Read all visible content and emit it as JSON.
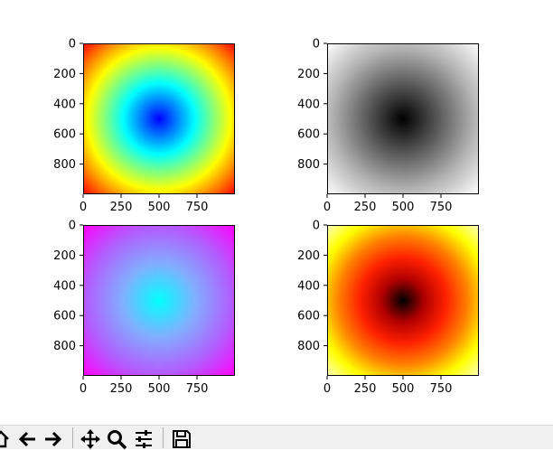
{
  "toolbar": {
    "buttons": [
      {
        "name": "home-button",
        "icon": "home-icon"
      },
      {
        "name": "back-button",
        "icon": "arrow-left-icon"
      },
      {
        "name": "forward-button",
        "icon": "arrow-right-icon"
      },
      {
        "name": "pan-button",
        "icon": "move-arrows-icon"
      },
      {
        "name": "zoom-button",
        "icon": "magnifier-icon"
      },
      {
        "name": "configure-subplots-button",
        "icon": "sliders-icon"
      },
      {
        "name": "save-button",
        "icon": "floppy-disk-icon"
      }
    ]
  },
  "chart_data": [
    {
      "type": "heatmap",
      "colormap": "jet-like (blue center, red corners)",
      "x_ticks": [
        "0",
        "250",
        "500",
        "750"
      ],
      "y_ticks": [
        "0",
        "200",
        "400",
        "600",
        "800"
      ],
      "xlim": [
        0,
        1000
      ],
      "ylim": [
        1000,
        0
      ],
      "stops": [
        "#0000ff",
        "#0080ff",
        "#00ffff",
        "#80ff80",
        "#ffff00",
        "#ff8000",
        "#ff0000"
      ]
    },
    {
      "type": "heatmap",
      "colormap": "gray (black center, light corners)",
      "x_ticks": [
        "0",
        "250",
        "500",
        "750"
      ],
      "y_ticks": [
        "0",
        "200",
        "400",
        "600",
        "800"
      ],
      "xlim": [
        0,
        1000
      ],
      "ylim": [
        1000,
        0
      ],
      "stops": [
        "#000000",
        "#5a5a5a",
        "#b4b4b4",
        "#ffffff"
      ]
    },
    {
      "type": "heatmap",
      "colormap": "cool (cyan center, magenta corners)",
      "x_ticks": [
        "0",
        "250",
        "500",
        "750"
      ],
      "y_ticks": [
        "0",
        "200",
        "400",
        "600",
        "800"
      ],
      "xlim": [
        0,
        1000
      ],
      "ylim": [
        1000,
        0
      ],
      "stops": [
        "#00ffff",
        "#80b0ff",
        "#b060ff",
        "#ff00ff"
      ]
    },
    {
      "type": "heatmap",
      "colormap": "hot (black center, yellow corners)",
      "x_ticks": [
        "0",
        "250",
        "500",
        "750"
      ],
      "y_ticks": [
        "0",
        "200",
        "400",
        "600",
        "800"
      ],
      "xlim": [
        0,
        1000
      ],
      "ylim": [
        1000,
        0
      ],
      "stops": [
        "#000000",
        "#b00000",
        "#ff2000",
        "#ff8000",
        "#ffff00",
        "#ffffc0"
      ]
    }
  ]
}
